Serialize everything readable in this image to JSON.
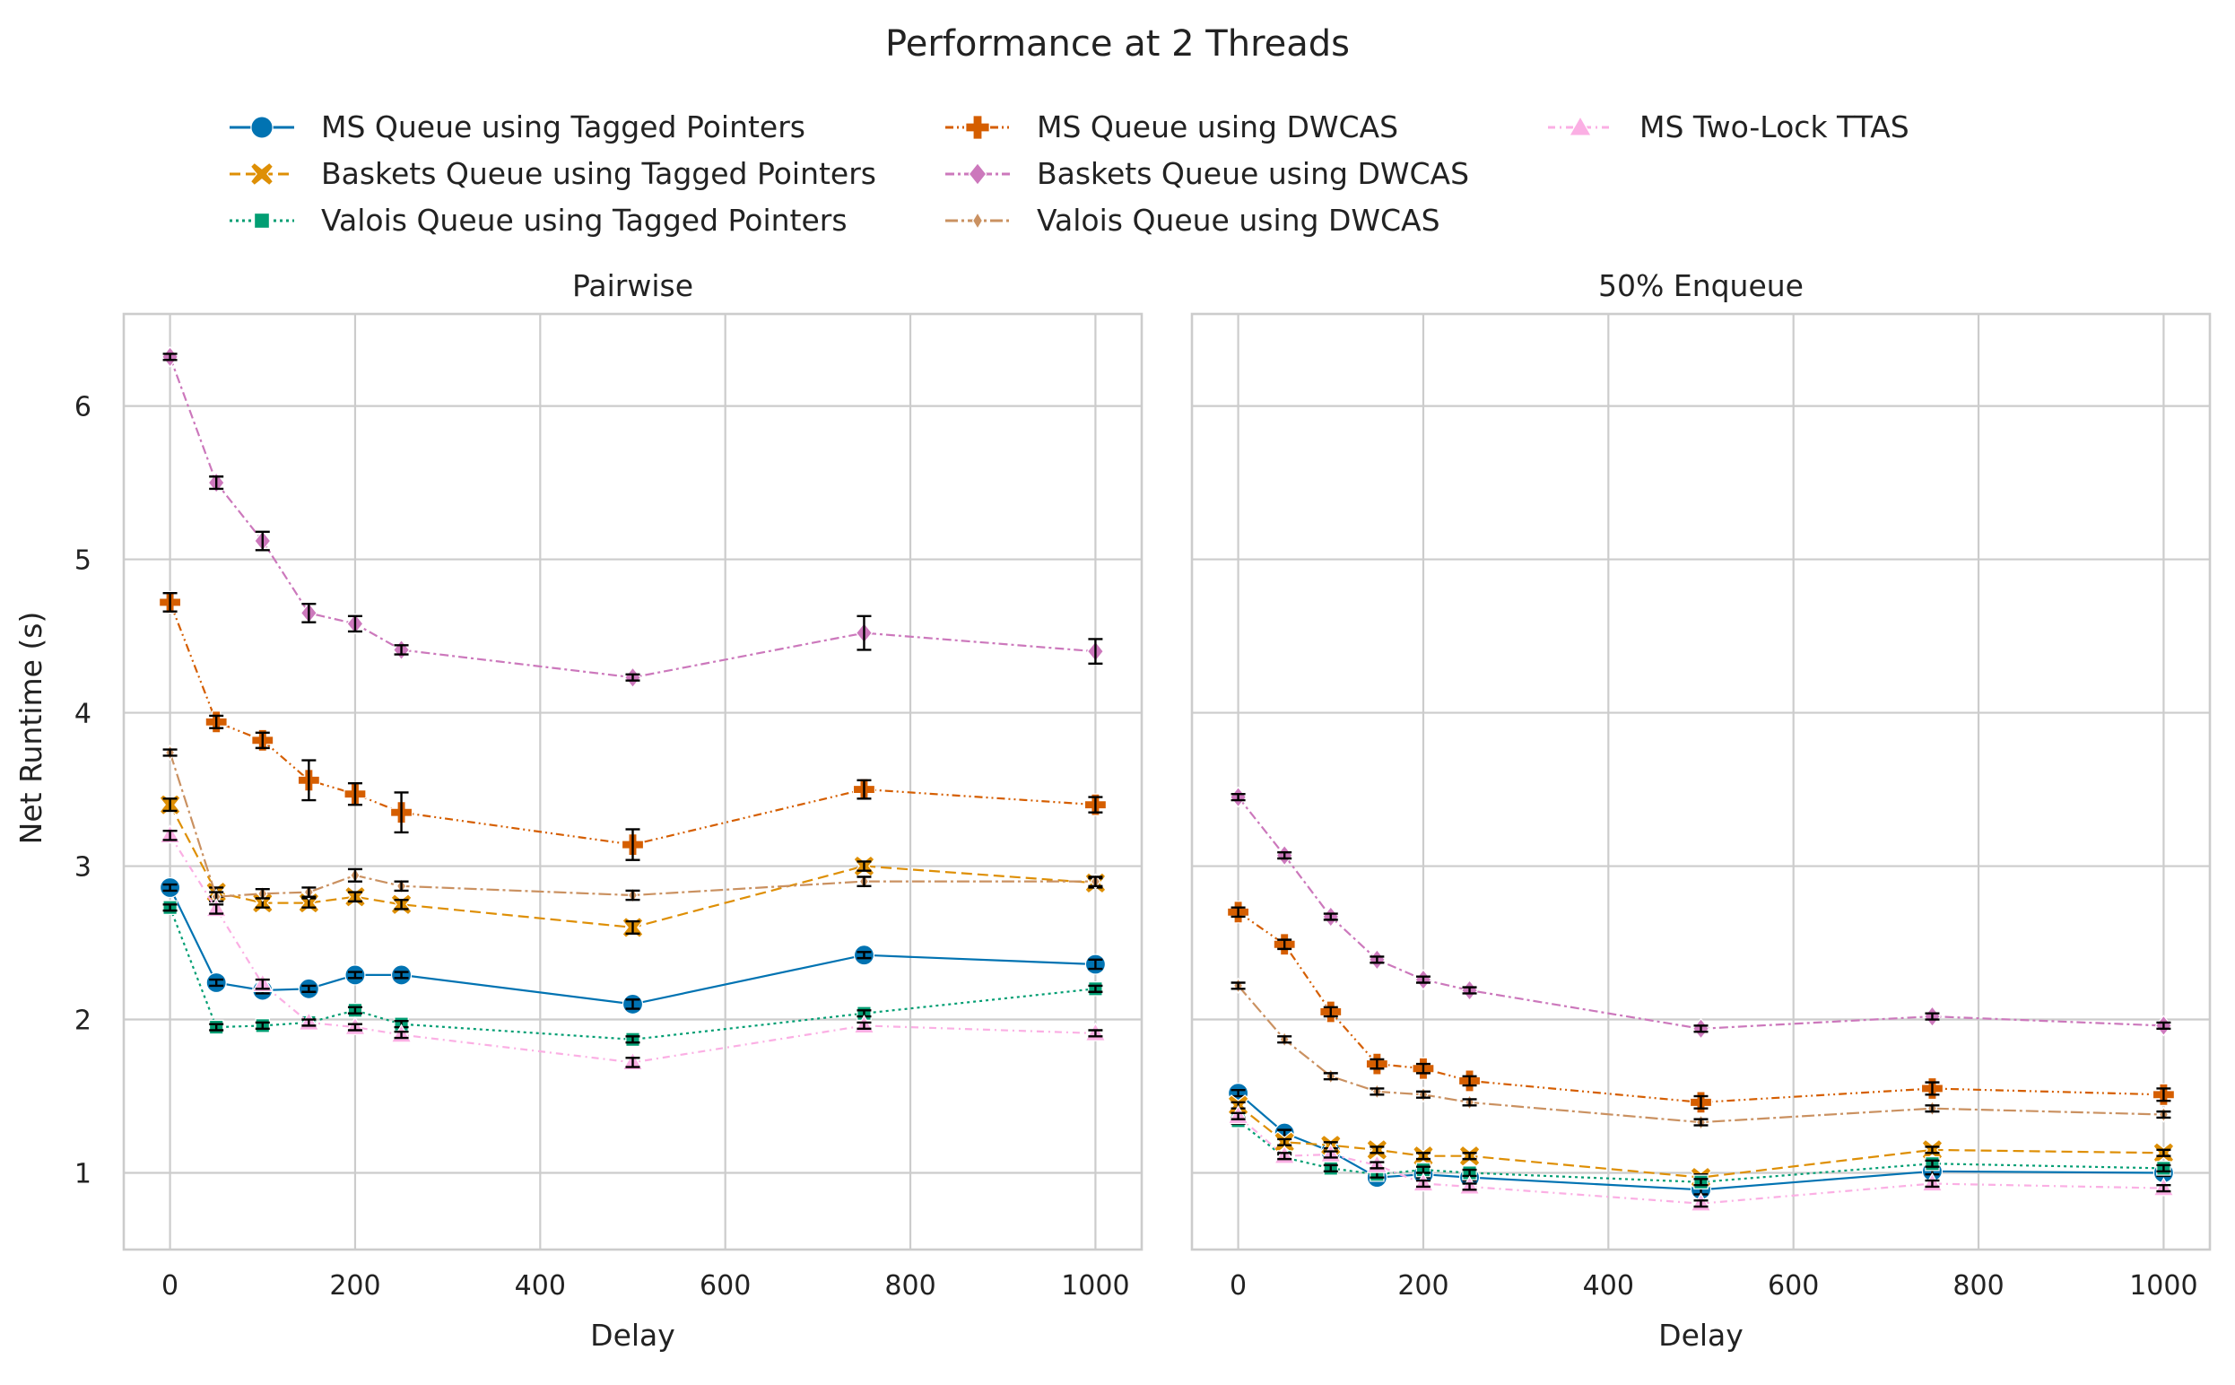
{
  "figure": {
    "title": "Performance at 2 Threads"
  },
  "chart_data": [
    {
      "type": "line",
      "title": "Pairwise",
      "xlabel": "Delay",
      "ylabel": "Net Runtime (s)",
      "xlim": [
        -50,
        1050
      ],
      "ylim": [
        0.5,
        6.6
      ],
      "xticks": [
        0,
        200,
        400,
        600,
        800,
        1000
      ],
      "yticks": [
        1,
        2,
        3,
        4,
        5,
        6
      ],
      "grid": true,
      "x": [
        0,
        50,
        100,
        150,
        200,
        250,
        500,
        750,
        1000
      ],
      "series": [
        {
          "name": "MS Queue using Tagged Pointers",
          "values": [
            2.86,
            2.24,
            2.19,
            2.2,
            2.29,
            2.29,
            2.1,
            2.42,
            2.36
          ],
          "err": [
            0.02,
            0.02,
            0.02,
            0.02,
            0.02,
            0.02,
            0.03,
            0.02,
            0.03
          ]
        },
        {
          "name": "Baskets Queue using Tagged Pointers",
          "values": [
            3.4,
            2.83,
            2.76,
            2.76,
            2.8,
            2.75,
            2.6,
            3.0,
            2.89
          ],
          "err": [
            0.04,
            0.03,
            0.03,
            0.03,
            0.03,
            0.03,
            0.04,
            0.03,
            0.03
          ]
        },
        {
          "name": "Valois Queue using Tagged Pointers",
          "values": [
            2.73,
            1.95,
            1.96,
            1.98,
            2.06,
            1.97,
            1.87,
            2.04,
            2.2
          ],
          "err": [
            0.02,
            0.02,
            0.02,
            0.02,
            0.02,
            0.02,
            0.02,
            0.02,
            0.02
          ]
        },
        {
          "name": "MS Queue using DWCAS",
          "values": [
            4.72,
            3.94,
            3.82,
            3.56,
            3.47,
            3.35,
            3.14,
            3.5,
            3.4
          ],
          "err": [
            0.06,
            0.04,
            0.05,
            0.13,
            0.07,
            0.13,
            0.1,
            0.06,
            0.05
          ]
        },
        {
          "name": "Baskets Queue using DWCAS",
          "values": [
            6.32,
            5.5,
            5.12,
            4.65,
            4.58,
            4.41,
            4.23,
            4.52,
            4.4
          ],
          "err": [
            0.02,
            0.04,
            0.06,
            0.06,
            0.05,
            0.03,
            0.02,
            0.11,
            0.08
          ]
        },
        {
          "name": "Valois Queue using DWCAS",
          "values": [
            3.74,
            2.8,
            2.82,
            2.83,
            2.94,
            2.87,
            2.81,
            2.9,
            2.9
          ],
          "err": [
            0.02,
            0.03,
            0.03,
            0.03,
            0.04,
            0.03,
            0.03,
            0.03,
            0.03
          ]
        },
        {
          "name": "MS Two-Lock TTAS",
          "values": [
            3.2,
            2.72,
            2.23,
            1.98,
            1.95,
            1.9,
            1.72,
            1.96,
            1.91
          ],
          "err": [
            0.03,
            0.03,
            0.03,
            0.02,
            0.02,
            0.02,
            0.03,
            0.02,
            0.02
          ]
        }
      ]
    },
    {
      "type": "line",
      "title": "50% Enqueue",
      "xlabel": "Delay",
      "ylabel": "",
      "xlim": [
        -50,
        1050
      ],
      "ylim": [
        0.5,
        6.6
      ],
      "xticks": [
        0,
        200,
        400,
        600,
        800,
        1000
      ],
      "yticks": [
        1,
        2,
        3,
        4,
        5,
        6
      ],
      "grid": true,
      "x": [
        0,
        50,
        100,
        150,
        200,
        250,
        500,
        750,
        1000
      ],
      "series": [
        {
          "name": "MS Queue using Tagged Pointers",
          "values": [
            1.52,
            1.26,
            1.14,
            0.97,
            0.99,
            0.97,
            0.89,
            1.01,
            1.0
          ],
          "err": [
            0.02,
            0.02,
            0.02,
            0.02,
            0.02,
            0.02,
            0.03,
            0.02,
            0.02
          ]
        },
        {
          "name": "Baskets Queue using Tagged Pointers",
          "values": [
            1.44,
            1.2,
            1.18,
            1.15,
            1.11,
            1.11,
            0.97,
            1.15,
            1.13
          ],
          "err": [
            0.02,
            0.02,
            0.02,
            0.02,
            0.02,
            0.02,
            0.02,
            0.02,
            0.02
          ]
        },
        {
          "name": "Valois Queue using Tagged Pointers",
          "values": [
            1.34,
            1.1,
            1.03,
            0.99,
            1.02,
            1.0,
            0.94,
            1.06,
            1.03
          ],
          "err": [
            0.02,
            0.02,
            0.02,
            0.02,
            0.02,
            0.02,
            0.02,
            0.02,
            0.02
          ]
        },
        {
          "name": "MS Queue using DWCAS",
          "values": [
            2.7,
            2.49,
            2.05,
            1.71,
            1.68,
            1.6,
            1.46,
            1.55,
            1.51
          ],
          "err": [
            0.03,
            0.03,
            0.03,
            0.03,
            0.03,
            0.03,
            0.04,
            0.04,
            0.04
          ]
        },
        {
          "name": "Baskets Queue using DWCAS",
          "values": [
            3.45,
            3.07,
            2.67,
            2.39,
            2.26,
            2.19,
            1.94,
            2.02,
            1.96
          ],
          "err": [
            0.02,
            0.02,
            0.02,
            0.02,
            0.02,
            0.02,
            0.02,
            0.02,
            0.02
          ]
        },
        {
          "name": "Valois Queue using DWCAS",
          "values": [
            2.22,
            1.87,
            1.63,
            1.53,
            1.51,
            1.46,
            1.33,
            1.42,
            1.38
          ],
          "err": [
            0.02,
            0.02,
            0.02,
            0.02,
            0.02,
            0.02,
            0.02,
            0.02,
            0.02
          ]
        },
        {
          "name": "MS Two-Lock TTAS",
          "values": [
            1.37,
            1.11,
            1.12,
            1.05,
            0.93,
            0.91,
            0.8,
            0.93,
            0.9
          ],
          "err": [
            0.02,
            0.02,
            0.02,
            0.02,
            0.02,
            0.02,
            0.02,
            0.02,
            0.02
          ]
        }
      ]
    }
  ],
  "legend": {
    "placement": "top-center",
    "columns": 3,
    "items": [
      {
        "label": "MS Queue using Tagged Pointers",
        "color": "#0173b2",
        "marker": "circle",
        "dash": "solid"
      },
      {
        "label": "Baskets Queue using Tagged Pointers",
        "color": "#de8f05",
        "marker": "x-filled",
        "dash": "dashed"
      },
      {
        "label": "Valois Queue using Tagged Pointers",
        "color": "#029e73",
        "marker": "square",
        "dash": "dotted"
      },
      {
        "label": "MS Queue using DWCAS",
        "color": "#d55e00",
        "marker": "plus-filled",
        "dash": "dash-dot-dot"
      },
      {
        "label": "Baskets Queue using DWCAS",
        "color": "#cc78bc",
        "marker": "diamond",
        "dash": "dash-dot"
      },
      {
        "label": "Valois Queue using DWCAS",
        "color": "#ca9161",
        "marker": "thin-diamond",
        "dash": "dash-dot-long"
      },
      {
        "label": "MS Two-Lock TTAS",
        "color": "#fbafe4",
        "marker": "triangle-up",
        "dash": "dash-dot-fine"
      }
    ]
  },
  "colors": {
    "grid": "#cccccc",
    "frame": "#cccccc",
    "errorbar": "#000000"
  }
}
